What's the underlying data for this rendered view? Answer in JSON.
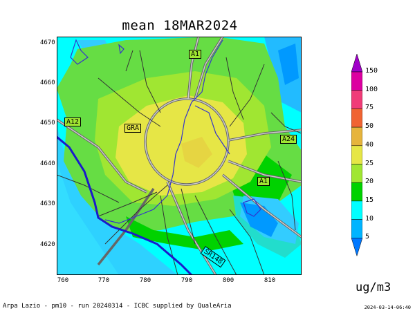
{
  "title": "mean 18MAR2024",
  "unit": "ug/m3",
  "footer": {
    "left": "Arpa Lazio - pm10 - run 20240314 - ICBC supplied by QualeAria",
    "right": "2024-03-14-06:40"
  },
  "axes": {
    "x_ticks": [
      "760",
      "770",
      "780",
      "790",
      "800",
      "810"
    ],
    "y_ticks": [
      "4670",
      "4660",
      "4650",
      "4640",
      "4630",
      "4620"
    ]
  },
  "road_labels": [
    "A1",
    "A12",
    "GRA",
    "A24",
    "A1",
    "SR148"
  ],
  "color_scale": {
    "labels": [
      "150",
      "100",
      "75",
      "50",
      "40",
      "25",
      "20",
      "15",
      "10",
      "5"
    ],
    "colors": [
      "#a000c8",
      "#dc00a0",
      "#f03c78",
      "#f06432",
      "#e6b43c",
      "#e6e646",
      "#a0e632",
      "#00d200",
      "#00ffff",
      "#00b4ff",
      "#0078ff"
    ]
  }
}
